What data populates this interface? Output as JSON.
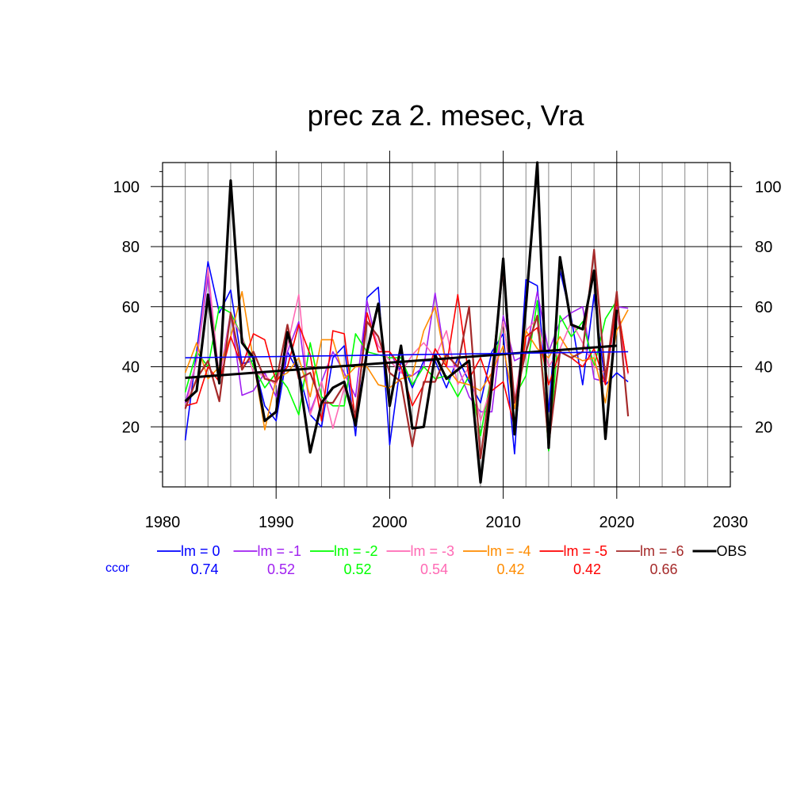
{
  "chart_data": {
    "type": "line",
    "title": "prec za 2. mesec, Vra",
    "xlabel": "",
    "ylabel": "",
    "xlim": [
      1980,
      2030
    ],
    "ylim": [
      0,
      108
    ],
    "x_ticks": [
      1980,
      1990,
      2000,
      2010,
      2020,
      2030
    ],
    "y_ticks": [
      20,
      40,
      60,
      80,
      100
    ],
    "grid": true,
    "legend_position": "bottom",
    "ccor_label": "ccor",
    "years": [
      1982,
      1983,
      1984,
      1985,
      1986,
      1987,
      1988,
      1989,
      1990,
      1991,
      1992,
      1993,
      1994,
      1995,
      1996,
      1997,
      1998,
      1999,
      2000,
      2001,
      2002,
      2003,
      2004,
      2005,
      2006,
      2007,
      2008,
      2009,
      2010,
      2011,
      2012,
      2013,
      2014,
      2015,
      2016,
      2017,
      2018,
      2019,
      2020,
      2021
    ],
    "series": [
      {
        "name": "lm = 0",
        "color": "#0000ff",
        "ccor": "0.74",
        "width": 1.6,
        "values": [
          15.5,
          45,
          75,
          58,
          65.5,
          41,
          42,
          27,
          22,
          45,
          38,
          24,
          20,
          43,
          47,
          17,
          63,
          66.5,
          14,
          42,
          33,
          42,
          42,
          33,
          43,
          35,
          28,
          45,
          51,
          11,
          69,
          67,
          25,
          72,
          56,
          34,
          64,
          34,
          38,
          35
        ]
      },
      {
        "name": "lm = -1",
        "color": "#a020f0",
        "ccor": "0.52",
        "width": 1.6,
        "values": [
          28,
          42,
          70,
          36,
          58,
          30.5,
          32,
          38,
          30,
          45,
          55,
          25,
          35,
          45,
          38,
          30,
          62,
          45,
          45,
          38,
          37,
          40,
          64.5,
          40,
          40,
          30,
          25,
          25,
          57,
          42,
          44,
          65,
          45,
          55,
          58,
          60,
          36,
          35,
          60,
          59.5
        ]
      },
      {
        "name": "lm = -2",
        "color": "#00ff00",
        "ccor": "0.52",
        "width": 1.6,
        "values": [
          31.5,
          45,
          40,
          60,
          58,
          50,
          40,
          33,
          38,
          33,
          24,
          48,
          30,
          27,
          27,
          51,
          45,
          44,
          43,
          43,
          34,
          40,
          36,
          37,
          30,
          37,
          17,
          38,
          55,
          30,
          37,
          62,
          12,
          57,
          50,
          55,
          40,
          56,
          62,
          38
        ]
      },
      {
        "name": "lm = -3",
        "color": "#ff69b4",
        "ccor": "0.54",
        "width": 1.6,
        "values": [
          26,
          42,
          73,
          36,
          57,
          50,
          38,
          37,
          34,
          47,
          64,
          24,
          35,
          19.5,
          33,
          22,
          58,
          47,
          42,
          38,
          44,
          48,
          43,
          52,
          34,
          40,
          22,
          34,
          55,
          29,
          52,
          56,
          40,
          46,
          55,
          48,
          40,
          38,
          58,
          37.5
        ]
      },
      {
        "name": "lm = -4",
        "color": "#ff8c00",
        "ccor": "0.42",
        "width": 1.6,
        "values": [
          38,
          48,
          36,
          40,
          50,
          65,
          42,
          19,
          36,
          38,
          43,
          30,
          49,
          49,
          36,
          40,
          40,
          34,
          33,
          36,
          37,
          52,
          60,
          40,
          35,
          34,
          32,
          38,
          47,
          26,
          52,
          46,
          43,
          50,
          44,
          42,
          43,
          28,
          52,
          59
        ]
      },
      {
        "name": "lm = -5",
        "color": "#ff0000",
        "ccor": "0.42",
        "width": 1.6,
        "values": [
          27,
          28,
          40,
          35,
          50,
          40,
          51,
          49,
          35,
          40,
          54,
          44,
          22,
          52,
          51,
          22,
          58,
          45,
          45,
          40,
          27,
          34,
          46,
          40,
          64,
          36,
          43,
          32,
          35,
          20,
          50,
          53,
          34,
          45,
          43,
          40,
          46,
          34,
          62,
          38
        ]
      },
      {
        "name": "lm = -6",
        "color": "#a52a2a",
        "ccor": "0.66",
        "width": 2.2,
        "values": [
          26,
          36,
          42,
          28.5,
          58,
          39,
          45,
          36,
          35,
          54,
          36,
          38,
          28,
          28,
          34,
          24,
          55,
          50,
          38,
          35,
          13.5,
          35,
          35,
          44,
          40,
          60,
          9.5,
          38,
          73,
          28,
          45,
          57,
          14,
          45,
          43,
          45,
          79,
          36,
          65,
          23.5
        ]
      },
      {
        "name": "OBS",
        "color": "#000000",
        "ccor": "",
        "width": 3.2,
        "values": [
          28.5,
          32,
          64,
          34.5,
          102,
          48,
          43,
          22,
          25,
          51.5,
          38,
          11.5,
          28,
          33,
          35,
          20.5,
          45,
          61,
          27,
          47,
          19.5,
          20,
          44,
          36,
          39,
          42,
          1.5,
          34,
          76,
          17.5,
          60,
          108,
          13,
          76.5,
          54,
          52.5,
          72,
          16,
          59,
          null
        ],
        "trend": [
          [
            1982,
            36.3
          ],
          [
            2020,
            47
          ]
        ]
      },
      {
        "name": "",
        "color": "#0000ff",
        "ccor": "",
        "width": 1.6,
        "legend": false,
        "values": [],
        "trend": [
          [
            1982,
            43
          ],
          [
            2021,
            45
          ]
        ]
      }
    ]
  }
}
